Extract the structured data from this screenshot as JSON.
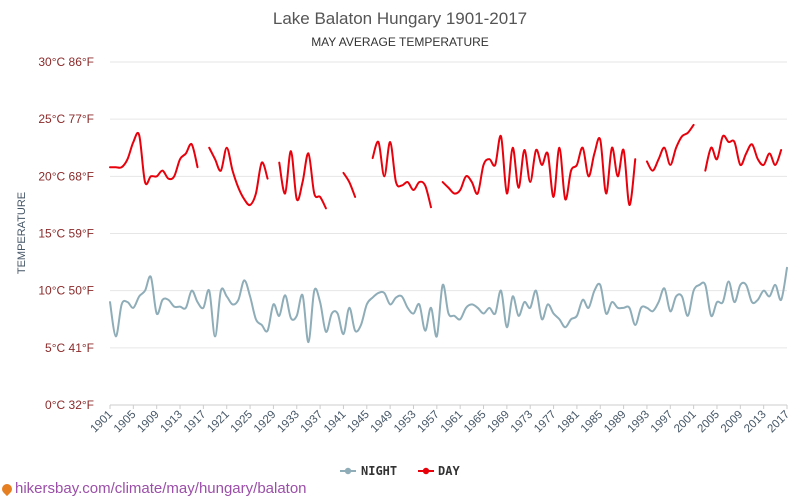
{
  "chart_data": {
    "type": "line",
    "title": "Lake Balaton Hungary 1901-2017",
    "subtitle": "MAY AVERAGE TEMPERATURE",
    "ylabel": "TEMPERATURE",
    "xlabel": "",
    "ylim": [
      0,
      30
    ],
    "xlim": [
      1901,
      2017
    ],
    "grid": true,
    "legend_position": "bottom-center",
    "y_ticks": [
      {
        "value": 0,
        "label": "0°C 32°F"
      },
      {
        "value": 5,
        "label": "5°C 41°F"
      },
      {
        "value": 10,
        "label": "10°C 50°F"
      },
      {
        "value": 15,
        "label": "15°C 59°F"
      },
      {
        "value": 20,
        "label": "20°C 68°F"
      },
      {
        "value": 25,
        "label": "25°C 77°F"
      },
      {
        "value": 30,
        "label": "30°C 86°F"
      }
    ],
    "x_ticks": [
      1901,
      1905,
      1909,
      1913,
      1917,
      1921,
      1925,
      1929,
      1933,
      1937,
      1941,
      1945,
      1949,
      1953,
      1957,
      1961,
      1965,
      1969,
      1973,
      1977,
      1981,
      1985,
      1989,
      1993,
      1997,
      2001,
      2005,
      2009,
      2013,
      2017
    ],
    "series": [
      {
        "name": "NIGHT",
        "color": "#8fadb8",
        "values": [
          [
            1901,
            9.0
          ],
          [
            1902,
            6.0
          ],
          [
            1903,
            8.8
          ],
          [
            1904,
            9.0
          ],
          [
            1905,
            8.5
          ],
          [
            1906,
            9.5
          ],
          [
            1907,
            10.0
          ],
          [
            1908,
            11.2
          ],
          [
            1909,
            8.0
          ],
          [
            1910,
            9.2
          ],
          [
            1911,
            9.2
          ],
          [
            1912,
            8.6
          ],
          [
            1913,
            8.6
          ],
          [
            1914,
            8.5
          ],
          [
            1915,
            10.0
          ],
          [
            1916,
            9.0
          ],
          [
            1917,
            8.5
          ],
          [
            1918,
            10.0
          ],
          [
            1919,
            6.0
          ],
          [
            1920,
            10.0
          ],
          [
            1921,
            9.5
          ],
          [
            1922,
            8.8
          ],
          [
            1923,
            9.2
          ],
          [
            1924,
            10.9
          ],
          [
            1925,
            9.5
          ],
          [
            1926,
            7.5
          ],
          [
            1927,
            7.0
          ],
          [
            1928,
            6.5
          ],
          [
            1929,
            8.8
          ],
          [
            1930,
            7.8
          ],
          [
            1931,
            9.6
          ],
          [
            1932,
            7.6
          ],
          [
            1933,
            7.8
          ],
          [
            1934,
            9.6
          ],
          [
            1935,
            5.5
          ],
          [
            1936,
            10.0
          ],
          [
            1937,
            9.0
          ],
          [
            1938,
            6.4
          ],
          [
            1939,
            8.0
          ],
          [
            1940,
            8.0
          ],
          [
            1941,
            6.2
          ],
          [
            1942,
            8.5
          ],
          [
            1943,
            6.5
          ],
          [
            1944,
            7.0
          ],
          [
            1945,
            8.8
          ],
          [
            1946,
            9.4
          ],
          [
            1947,
            9.8
          ],
          [
            1948,
            9.8
          ],
          [
            1949,
            8.8
          ],
          [
            1950,
            9.4
          ],
          [
            1951,
            9.5
          ],
          [
            1952,
            8.5
          ],
          [
            1953,
            8.0
          ],
          [
            1954,
            8.8
          ],
          [
            1955,
            6.5
          ],
          [
            1956,
            8.5
          ],
          [
            1957,
            6.0
          ],
          [
            1958,
            10.5
          ],
          [
            1959,
            8.0
          ],
          [
            1960,
            7.8
          ],
          [
            1961,
            7.5
          ],
          [
            1962,
            8.5
          ],
          [
            1963,
            8.8
          ],
          [
            1964,
            8.5
          ],
          [
            1965,
            8.0
          ],
          [
            1966,
            8.5
          ],
          [
            1967,
            8.0
          ],
          [
            1968,
            10.0
          ],
          [
            1969,
            6.8
          ],
          [
            1970,
            9.5
          ],
          [
            1971,
            7.8
          ],
          [
            1972,
            9.0
          ],
          [
            1973,
            8.5
          ],
          [
            1974,
            10.0
          ],
          [
            1975,
            7.5
          ],
          [
            1976,
            8.8
          ],
          [
            1977,
            8.0
          ],
          [
            1978,
            7.5
          ],
          [
            1979,
            6.8
          ],
          [
            1980,
            7.5
          ],
          [
            1981,
            7.8
          ],
          [
            1982,
            9.2
          ],
          [
            1983,
            8.5
          ],
          [
            1984,
            10.0
          ],
          [
            1985,
            10.5
          ],
          [
            1986,
            8.0
          ],
          [
            1987,
            9.0
          ],
          [
            1988,
            8.5
          ],
          [
            1989,
            8.5
          ],
          [
            1990,
            8.5
          ],
          [
            1991,
            7.0
          ],
          [
            1992,
            8.5
          ],
          [
            1993,
            8.5
          ],
          [
            1994,
            8.2
          ],
          [
            1995,
            9.0
          ],
          [
            1996,
            10.2
          ],
          [
            1997,
            8.2
          ],
          [
            1998,
            9.5
          ],
          [
            1999,
            9.5
          ],
          [
            2000,
            7.8
          ],
          [
            2001,
            10.0
          ],
          [
            2002,
            10.5
          ],
          [
            2003,
            10.5
          ],
          [
            2004,
            7.8
          ],
          [
            2005,
            9.0
          ],
          [
            2006,
            9.0
          ],
          [
            2007,
            10.8
          ],
          [
            2008,
            9.0
          ],
          [
            2009,
            10.5
          ],
          [
            2010,
            10.5
          ],
          [
            2011,
            9.0
          ],
          [
            2012,
            9.2
          ],
          [
            2013,
            10.0
          ],
          [
            2014,
            9.5
          ],
          [
            2015,
            10.5
          ],
          [
            2016,
            9.2
          ],
          [
            2017,
            12.0
          ]
        ]
      },
      {
        "name": "DAY",
        "color": "#e8000b",
        "values": [
          [
            1901,
            20.8
          ],
          [
            1902,
            20.8
          ],
          [
            1903,
            20.8
          ],
          [
            1904,
            21.5
          ],
          [
            1905,
            23.0
          ],
          [
            1906,
            23.6
          ],
          [
            1907,
            19.5
          ],
          [
            1908,
            20.0
          ],
          [
            1909,
            20.0
          ],
          [
            1910,
            20.5
          ],
          [
            1911,
            19.8
          ],
          [
            1912,
            20.0
          ],
          [
            1913,
            21.5
          ],
          [
            1914,
            22.0
          ],
          [
            1915,
            22.8
          ],
          [
            1916,
            20.8
          ],
          [
            1917,
            null
          ],
          [
            1918,
            22.5
          ],
          [
            1919,
            21.5
          ],
          [
            1920,
            20.5
          ],
          [
            1921,
            22.5
          ],
          [
            1922,
            20.5
          ],
          [
            1923,
            19.0
          ],
          [
            1924,
            18.0
          ],
          [
            1925,
            17.5
          ],
          [
            1926,
            18.5
          ],
          [
            1927,
            21.2
          ],
          [
            1928,
            19.8
          ],
          [
            1929,
            null
          ],
          [
            1930,
            21.2
          ],
          [
            1931,
            18.5
          ],
          [
            1932,
            22.2
          ],
          [
            1933,
            18.0
          ],
          [
            1934,
            19.5
          ],
          [
            1935,
            22.0
          ],
          [
            1936,
            18.5
          ],
          [
            1937,
            18.2
          ],
          [
            1938,
            17.2
          ],
          [
            1939,
            null
          ],
          [
            1940,
            null
          ],
          [
            1941,
            20.3
          ],
          [
            1942,
            19.5
          ],
          [
            1943,
            18.2
          ],
          [
            1944,
            null
          ],
          [
            1945,
            null
          ],
          [
            1946,
            21.6
          ],
          [
            1947,
            23.0
          ],
          [
            1948,
            20.0
          ],
          [
            1949,
            23.0
          ],
          [
            1950,
            19.5
          ],
          [
            1951,
            19.2
          ],
          [
            1952,
            19.5
          ],
          [
            1953,
            18.8
          ],
          [
            1954,
            19.5
          ],
          [
            1955,
            19.2
          ],
          [
            1956,
            17.3
          ],
          [
            1957,
            null
          ],
          [
            1958,
            19.5
          ],
          [
            1959,
            19.0
          ],
          [
            1960,
            18.5
          ],
          [
            1961,
            18.8
          ],
          [
            1962,
            20.0
          ],
          [
            1963,
            19.5
          ],
          [
            1964,
            18.5
          ],
          [
            1965,
            21.0
          ],
          [
            1966,
            21.5
          ],
          [
            1967,
            21.0
          ],
          [
            1968,
            23.5
          ],
          [
            1969,
            18.5
          ],
          [
            1970,
            22.5
          ],
          [
            1971,
            19.0
          ],
          [
            1972,
            22.3
          ],
          [
            1973,
            19.5
          ],
          [
            1974,
            22.3
          ],
          [
            1975,
            21.0
          ],
          [
            1976,
            22.0
          ],
          [
            1977,
            18.2
          ],
          [
            1978,
            22.5
          ],
          [
            1979,
            18.0
          ],
          [
            1980,
            20.5
          ],
          [
            1981,
            21.0
          ],
          [
            1982,
            22.5
          ],
          [
            1983,
            20.0
          ],
          [
            1984,
            22.0
          ],
          [
            1985,
            23.2
          ],
          [
            1986,
            18.5
          ],
          [
            1987,
            22.5
          ],
          [
            1988,
            20.0
          ],
          [
            1989,
            22.3
          ],
          [
            1990,
            17.5
          ],
          [
            1991,
            21.5
          ],
          [
            1992,
            null
          ],
          [
            1993,
            21.3
          ],
          [
            1994,
            20.5
          ],
          [
            1995,
            21.5
          ],
          [
            1996,
            22.5
          ],
          [
            1997,
            21.0
          ],
          [
            1998,
            22.5
          ],
          [
            1999,
            23.5
          ],
          [
            2000,
            23.8
          ],
          [
            2001,
            24.5
          ],
          [
            2002,
            null
          ],
          [
            2003,
            20.5
          ],
          [
            2004,
            22.5
          ],
          [
            2005,
            21.5
          ],
          [
            2006,
            23.5
          ],
          [
            2007,
            23.0
          ],
          [
            2008,
            23.0
          ],
          [
            2009,
            21.0
          ],
          [
            2010,
            22.0
          ],
          [
            2011,
            22.8
          ],
          [
            2012,
            21.5
          ],
          [
            2013,
            21.0
          ],
          [
            2014,
            22.0
          ],
          [
            2015,
            21.0
          ],
          [
            2016,
            22.3
          ],
          [
            2017,
            null
          ]
        ]
      }
    ]
  },
  "source_text": "hikersbay.com/climate/may/hungary/balaton"
}
